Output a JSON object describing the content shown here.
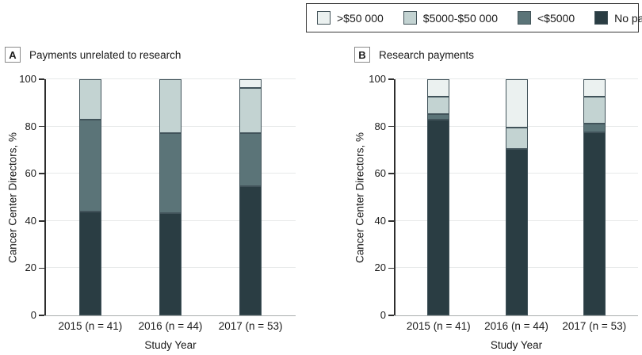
{
  "figure": {
    "background": "#ffffff"
  },
  "legend": {
    "border_color": "#3a3a3a",
    "items": [
      {
        "label": ">$50 000",
        "color": "#ebf1f0"
      },
      {
        "label": "$5000-$50 000",
        "color": "#c3d3d2"
      },
      {
        "label": "<$5000",
        "color": "#5b7478"
      },
      {
        "label": "No payments",
        "color": "#2a3d43"
      }
    ]
  },
  "axes": {
    "y_label": "Cancer Center Directors, %",
    "x_label": "Study Year",
    "y_ticks": [
      0,
      20,
      40,
      60,
      80,
      100
    ],
    "y_lim": [
      0,
      100
    ]
  },
  "panels": [
    {
      "letter": "A",
      "title": "Payments unrelated to research"
    },
    {
      "letter": "B",
      "title": "Research payments"
    }
  ],
  "chart_data": [
    {
      "type": "bar",
      "stacked": true,
      "panel": "A",
      "title": "Payments unrelated to research",
      "categories": [
        "2015 (n = 41)",
        "2016 (n = 44)",
        "2017 (n = 53)"
      ],
      "series": [
        {
          "name": "No payments",
          "color": "#2a3d43",
          "values": [
            43.9,
            43.2,
            54.7
          ]
        },
        {
          "name": "<$5000",
          "color": "#5b7478",
          "values": [
            39.0,
            34.1,
            22.6
          ]
        },
        {
          "name": "$5000-$50 000",
          "color": "#c3d3d2",
          "values": [
            17.1,
            22.7,
            18.9
          ]
        },
        {
          "name": ">$50 000",
          "color": "#ebf1f0",
          "values": [
            0.0,
            0.0,
            3.8
          ]
        }
      ],
      "xlabel": "Study Year",
      "ylabel": "Cancer Center Directors, %",
      "ylim": [
        0,
        100
      ],
      "grid": true,
      "legend_position": "top-right"
    },
    {
      "type": "bar",
      "stacked": true,
      "panel": "B",
      "title": "Research payments",
      "categories": [
        "2015 (n = 41)",
        "2016 (n = 44)",
        "2017 (n = 53)"
      ],
      "series": [
        {
          "name": "No payments",
          "color": "#2a3d43",
          "values": [
            82.9,
            70.5,
            77.4
          ]
        },
        {
          "name": "<$5000",
          "color": "#5b7478",
          "values": [
            2.4,
            0.0,
            3.8
          ]
        },
        {
          "name": "$5000-$50 000",
          "color": "#c3d3d2",
          "values": [
            7.3,
            9.1,
            11.3
          ]
        },
        {
          "name": ">$50 000",
          "color": "#ebf1f0",
          "values": [
            7.4,
            20.4,
            7.5
          ]
        }
      ],
      "xlabel": "Study Year",
      "ylabel": "Cancer Center Directors, %",
      "ylim": [
        0,
        100
      ],
      "grid": true,
      "legend_position": "top-right"
    }
  ]
}
